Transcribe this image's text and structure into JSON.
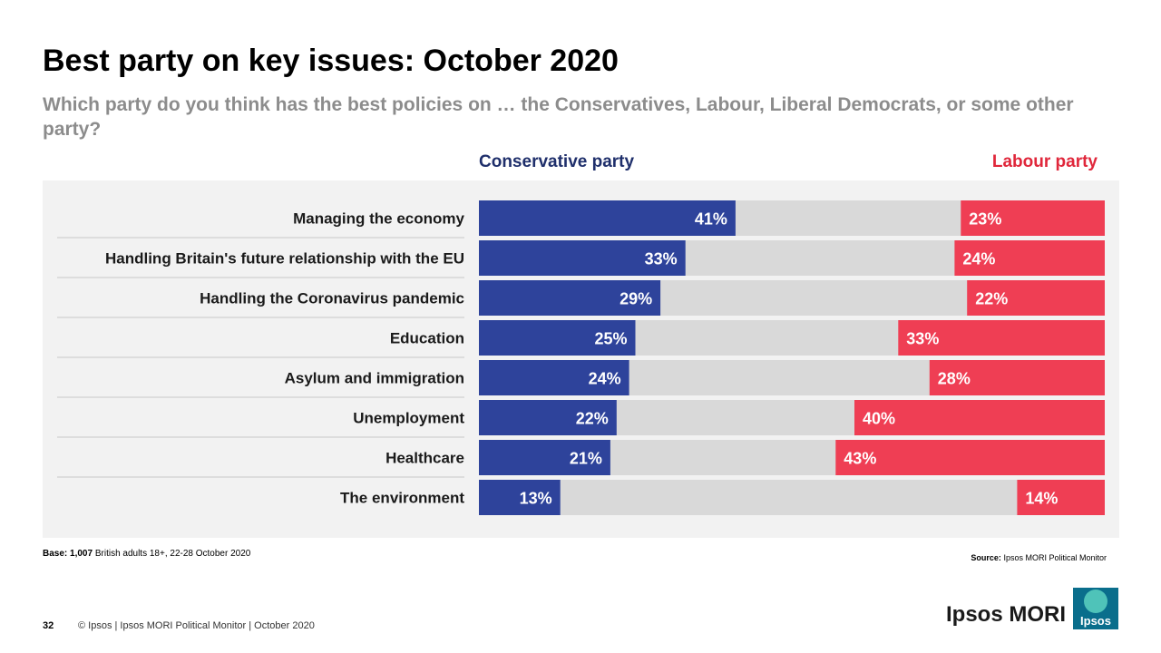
{
  "title": "Best party on key issues: October 2020",
  "subtitle": "Which party do you think has the best policies on … the Conservatives, Labour, Liberal Democrats, or some other party?",
  "footer": {
    "base_label": "Base:",
    "base_count": "1,007",
    "base_text": "British adults 18+, 22-28 October 2020",
    "source_label": "Source:",
    "source_text": "Ipsos MORI Political Monitor",
    "page_number": "32",
    "copyright": "© Ipsos | Ipsos MORI Political Monitor | October 2020"
  },
  "brand": {
    "name": "Ipsos MORI",
    "logo_text": "Ipsos"
  },
  "colors": {
    "conservative": "#2e439b",
    "labour": "#ef3e54",
    "remainder": "#d9d9d9",
    "panel": "#f2f2f2"
  },
  "chart_data": {
    "type": "bar",
    "orientation": "horizontal-diverging",
    "title": "Best party on key issues: October 2020",
    "xlim": [
      0,
      100
    ],
    "categories": [
      "Managing the economy",
      "Handling Britain's future relationship with the EU",
      "Handling the Coronavirus pandemic",
      "Education",
      "Asylum and immigration",
      "Unemployment",
      "Healthcare",
      "The environment"
    ],
    "series": [
      {
        "name": "Conservative party",
        "align": "left",
        "values": [
          41,
          33,
          29,
          25,
          24,
          22,
          21,
          13
        ]
      },
      {
        "name": "Labour party",
        "align": "right",
        "values": [
          23,
          24,
          22,
          33,
          28,
          40,
          43,
          14
        ]
      }
    ],
    "value_suffix": "%"
  }
}
